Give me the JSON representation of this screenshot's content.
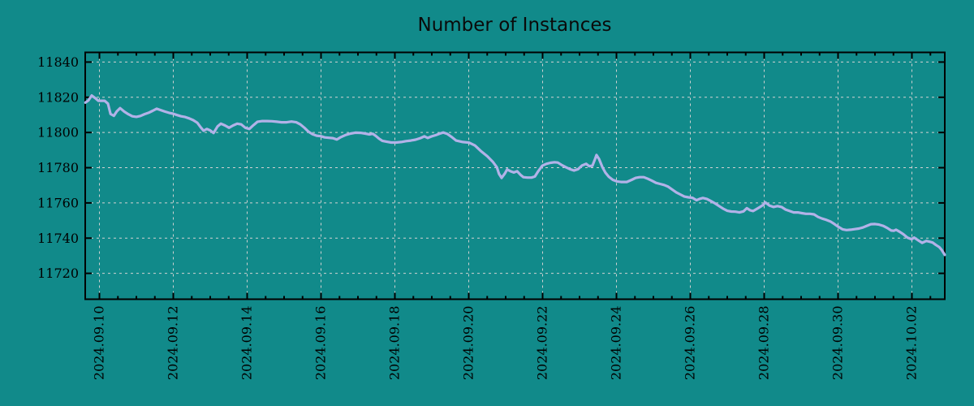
{
  "page": {
    "background_color": "#118a8a"
  },
  "chart_data": {
    "type": "line",
    "title": "Number of Instances",
    "legend": "none",
    "grid": true,
    "colors": {
      "background": "#118a8a",
      "line": "#b2b2e8",
      "grid": "#d2d2d2",
      "axis": "#000000",
      "text": "#000000"
    },
    "x_axis": {
      "unit": "date",
      "range_days": [
        0.615,
        23.89
      ],
      "days_epoch": "days since 2024-09-09 00:00",
      "minor_tick_step_days": 0.5,
      "tick_positions_days": [
        1,
        3,
        5,
        7,
        9,
        11,
        13,
        15,
        17,
        19,
        21,
        23
      ],
      "tick_labels": [
        "2024.09.10",
        "2024.09.12",
        "2024.09.14",
        "2024.09.16",
        "2024.09.18",
        "2024.09.20",
        "2024.09.22",
        "2024.09.24",
        "2024.09.26",
        "2024.09.28",
        "2024.09.30",
        "2024.10.02"
      ]
    },
    "y_axis": {
      "range": [
        11705.3,
        11845.5
      ],
      "ticks": [
        11720,
        11740,
        11760,
        11780,
        11800,
        11820,
        11840
      ]
    },
    "series": [
      {
        "name": "Number of Instances",
        "points": [
          [
            0.62,
            11817
          ],
          [
            0.7,
            11818.2
          ],
          [
            0.79,
            11821
          ],
          [
            0.88,
            11819.6
          ],
          [
            0.97,
            11818
          ],
          [
            1.06,
            11818
          ],
          [
            1.14,
            11818
          ],
          [
            1.23,
            11816.4
          ],
          [
            1.3,
            11810.5
          ],
          [
            1.39,
            11809.5
          ],
          [
            1.47,
            11812
          ],
          [
            1.56,
            11813.8
          ],
          [
            1.67,
            11811.9
          ],
          [
            1.78,
            11810.4
          ],
          [
            1.89,
            11809.2
          ],
          [
            2.0,
            11808.9
          ],
          [
            2.11,
            11809.4
          ],
          [
            2.22,
            11810.4
          ],
          [
            2.33,
            11811.2
          ],
          [
            2.44,
            11812.3
          ],
          [
            2.55,
            11813.5
          ],
          [
            2.66,
            11812.7
          ],
          [
            2.77,
            11811.9
          ],
          [
            2.88,
            11811.2
          ],
          [
            2.99,
            11810.7
          ],
          [
            3.1,
            11809.9
          ],
          [
            3.21,
            11809.2
          ],
          [
            3.32,
            11808.8
          ],
          [
            3.43,
            11808
          ],
          [
            3.54,
            11807
          ],
          [
            3.65,
            11805.5
          ],
          [
            3.74,
            11803
          ],
          [
            3.82,
            11801
          ],
          [
            3.91,
            11802
          ],
          [
            4.0,
            11801.2
          ],
          [
            4.09,
            11799.7
          ],
          [
            4.2,
            11803.5
          ],
          [
            4.29,
            11805
          ],
          [
            4.4,
            11804
          ],
          [
            4.51,
            11802.7
          ],
          [
            4.62,
            11804
          ],
          [
            4.73,
            11805
          ],
          [
            4.84,
            11804.6
          ],
          [
            4.95,
            11802.7
          ],
          [
            5.06,
            11802
          ],
          [
            5.17,
            11804.2
          ],
          [
            5.28,
            11806.1
          ],
          [
            5.41,
            11806.5
          ],
          [
            5.54,
            11806.5
          ],
          [
            5.67,
            11806.4
          ],
          [
            5.8,
            11806.1
          ],
          [
            5.93,
            11805.8
          ],
          [
            6.07,
            11805.8
          ],
          [
            6.2,
            11806.2
          ],
          [
            6.33,
            11805.8
          ],
          [
            6.44,
            11804.6
          ],
          [
            6.55,
            11802.7
          ],
          [
            6.66,
            11800.5
          ],
          [
            6.77,
            11799
          ],
          [
            6.88,
            11798.2
          ],
          [
            6.99,
            11797.9
          ],
          [
            7.1,
            11797.2
          ],
          [
            7.21,
            11797
          ],
          [
            7.32,
            11796.8
          ],
          [
            7.43,
            11796
          ],
          [
            7.54,
            11797.4
          ],
          [
            7.67,
            11798.6
          ],
          [
            7.8,
            11799.4
          ],
          [
            7.93,
            11799.9
          ],
          [
            8.07,
            11799.8
          ],
          [
            8.2,
            11799.4
          ],
          [
            8.31,
            11798.9
          ],
          [
            8.4,
            11799.3
          ],
          [
            8.48,
            11798.1
          ],
          [
            8.57,
            11796.5
          ],
          [
            8.66,
            11795.3
          ],
          [
            8.77,
            11794.8
          ],
          [
            8.9,
            11794.3
          ],
          [
            9.03,
            11794.3
          ],
          [
            9.17,
            11794.6
          ],
          [
            9.3,
            11795.1
          ],
          [
            9.43,
            11795.4
          ],
          [
            9.56,
            11795.9
          ],
          [
            9.69,
            11796.8
          ],
          [
            9.8,
            11797.8
          ],
          [
            9.89,
            11796.9
          ],
          [
            10.0,
            11797.8
          ],
          [
            10.11,
            11798.5
          ],
          [
            10.22,
            11799.4
          ],
          [
            10.31,
            11800
          ],
          [
            10.42,
            11799.2
          ],
          [
            10.53,
            11797.6
          ],
          [
            10.66,
            11795.4
          ],
          [
            10.84,
            11794.6
          ],
          [
            11.01,
            11794.2
          ],
          [
            11.17,
            11792.6
          ],
          [
            11.32,
            11789.6
          ],
          [
            11.5,
            11786.5
          ],
          [
            11.65,
            11783.4
          ],
          [
            11.76,
            11780.3
          ],
          [
            11.82,
            11776.5
          ],
          [
            11.89,
            11774.2
          ],
          [
            11.98,
            11776.8
          ],
          [
            12.04,
            11779
          ],
          [
            12.13,
            11778
          ],
          [
            12.22,
            11777.3
          ],
          [
            12.31,
            11778
          ],
          [
            12.4,
            11776
          ],
          [
            12.48,
            11774.6
          ],
          [
            12.59,
            11774.4
          ],
          [
            12.7,
            11774.4
          ],
          [
            12.79,
            11775
          ],
          [
            12.88,
            11778
          ],
          [
            12.99,
            11781.1
          ],
          [
            13.1,
            11782.2
          ],
          [
            13.21,
            11782.8
          ],
          [
            13.32,
            11783.1
          ],
          [
            13.41,
            11782.9
          ],
          [
            13.52,
            11781.5
          ],
          [
            13.63,
            11780.3
          ],
          [
            13.74,
            11779.2
          ],
          [
            13.85,
            11778.4
          ],
          [
            13.96,
            11779.2
          ],
          [
            14.07,
            11781.3
          ],
          [
            14.18,
            11782.2
          ],
          [
            14.26,
            11780.9
          ],
          [
            14.35,
            11781.1
          ],
          [
            14.42,
            11784.9
          ],
          [
            14.46,
            11787.2
          ],
          [
            14.53,
            11784.9
          ],
          [
            14.62,
            11780.3
          ],
          [
            14.7,
            11777.2
          ],
          [
            14.79,
            11774.9
          ],
          [
            14.9,
            11773.1
          ],
          [
            15.01,
            11772.2
          ],
          [
            15.12,
            11771.9
          ],
          [
            15.28,
            11771.9
          ],
          [
            15.41,
            11773.1
          ],
          [
            15.52,
            11774.2
          ],
          [
            15.63,
            11774.6
          ],
          [
            15.74,
            11774.6
          ],
          [
            15.85,
            11773.7
          ],
          [
            15.96,
            11772.6
          ],
          [
            16.07,
            11771.4
          ],
          [
            16.18,
            11770.8
          ],
          [
            16.29,
            11770.2
          ],
          [
            16.4,
            11769.2
          ],
          [
            16.51,
            11767.6
          ],
          [
            16.62,
            11766
          ],
          [
            16.73,
            11764.8
          ],
          [
            16.84,
            11763.6
          ],
          [
            16.95,
            11763.2
          ],
          [
            17.06,
            11762.9
          ],
          [
            17.17,
            11761.5
          ],
          [
            17.25,
            11762.3
          ],
          [
            17.34,
            11762.8
          ],
          [
            17.45,
            11762.2
          ],
          [
            17.56,
            11761
          ],
          [
            17.67,
            11759.7
          ],
          [
            17.78,
            11758.2
          ],
          [
            17.89,
            11756.7
          ],
          [
            18.0,
            11755.5
          ],
          [
            18.11,
            11755.1
          ],
          [
            18.22,
            11755
          ],
          [
            18.33,
            11754.6
          ],
          [
            18.44,
            11755.2
          ],
          [
            18.53,
            11757
          ],
          [
            18.62,
            11755.8
          ],
          [
            18.7,
            11755.4
          ],
          [
            18.79,
            11756.5
          ],
          [
            18.88,
            11757.6
          ],
          [
            18.97,
            11758.8
          ],
          [
            19.03,
            11760.3
          ],
          [
            19.14,
            11758.5
          ],
          [
            19.25,
            11757.7
          ],
          [
            19.36,
            11758.2
          ],
          [
            19.47,
            11757.7
          ],
          [
            19.58,
            11756.2
          ],
          [
            19.69,
            11755.4
          ],
          [
            19.8,
            11754.6
          ],
          [
            19.91,
            11754.6
          ],
          [
            20.02,
            11754.2
          ],
          [
            20.13,
            11753.8
          ],
          [
            20.24,
            11753.8
          ],
          [
            20.35,
            11753.5
          ],
          [
            20.46,
            11752
          ],
          [
            20.57,
            11751.1
          ],
          [
            20.68,
            11750.4
          ],
          [
            20.79,
            11749.5
          ],
          [
            20.9,
            11748
          ],
          [
            21.01,
            11746.4
          ],
          [
            21.12,
            11745
          ],
          [
            21.23,
            11744.6
          ],
          [
            21.34,
            11744.8
          ],
          [
            21.45,
            11745.1
          ],
          [
            21.56,
            11745.4
          ],
          [
            21.67,
            11746
          ],
          [
            21.78,
            11747
          ],
          [
            21.89,
            11747.9
          ],
          [
            22.0,
            11748
          ],
          [
            22.11,
            11747.7
          ],
          [
            22.22,
            11747
          ],
          [
            22.33,
            11745.8
          ],
          [
            22.44,
            11744.3
          ],
          [
            22.51,
            11744.2
          ],
          [
            22.57,
            11744.8
          ],
          [
            22.66,
            11743.7
          ],
          [
            22.77,
            11742.2
          ],
          [
            22.88,
            11740.3
          ],
          [
            22.99,
            11739.4
          ],
          [
            23.06,
            11740.3
          ],
          [
            23.17,
            11738.8
          ],
          [
            23.28,
            11737.3
          ],
          [
            23.39,
            11738.4
          ],
          [
            23.47,
            11738
          ],
          [
            23.56,
            11737.5
          ],
          [
            23.65,
            11736.1
          ],
          [
            23.74,
            11734.9
          ],
          [
            23.8,
            11733.5
          ],
          [
            23.85,
            11731.8
          ],
          [
            23.89,
            11730.5
          ]
        ]
      }
    ]
  }
}
